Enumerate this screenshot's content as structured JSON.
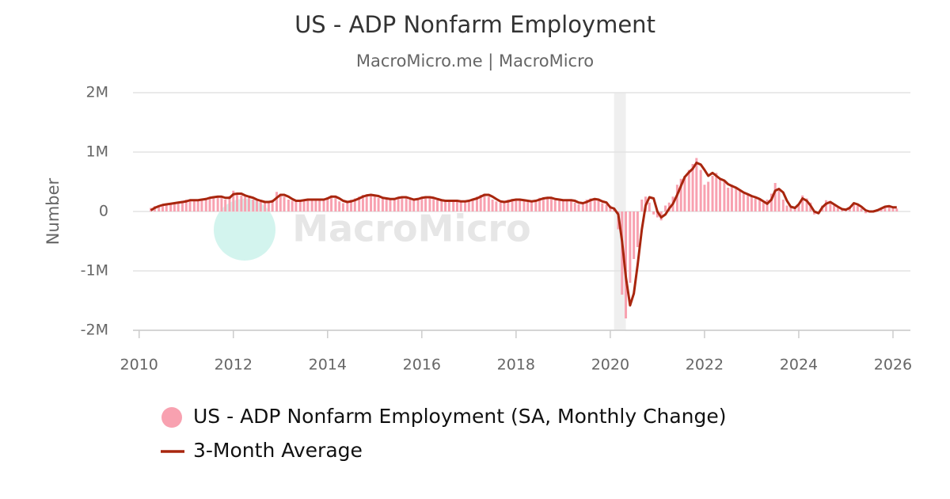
{
  "chart_data": {
    "type": "bar_line",
    "title": "US - ADP Nonfarm Employment",
    "subtitle": "MacroMicro.me | MacroMicro",
    "watermark": "MacroMicro",
    "y_label": "Number",
    "xlim": [
      2009.87,
      2026.37
    ],
    "xticks": [
      2010,
      2012,
      2014,
      2016,
      2018,
      2020,
      2022,
      2024,
      2026
    ],
    "ylim": [
      -2000000,
      2000000
    ],
    "yticks": [
      {
        "value": -2000000,
        "label": "-2M"
      },
      {
        "value": -1000000,
        "label": "-1M"
      },
      0,
      {
        "value": 1000000,
        "label": "1M"
      },
      {
        "value": 2000000,
        "label": "2M"
      }
    ],
    "grid": true,
    "shaded_regions": [
      [
        2020.08,
        2020.33
      ]
    ],
    "shade_color": "#efefef",
    "x": [
      2010.25,
      2010.33,
      2010.42,
      2010.5,
      2010.58,
      2010.67,
      2010.75,
      2010.83,
      2010.92,
      2011.0,
      2011.08,
      2011.17,
      2011.25,
      2011.33,
      2011.42,
      2011.5,
      2011.58,
      2011.67,
      2011.75,
      2011.83,
      2011.92,
      2012.0,
      2012.08,
      2012.17,
      2012.25,
      2012.33,
      2012.42,
      2012.5,
      2012.58,
      2012.67,
      2012.75,
      2012.83,
      2012.92,
      2013.0,
      2013.08,
      2013.17,
      2013.25,
      2013.33,
      2013.42,
      2013.5,
      2013.58,
      2013.67,
      2013.75,
      2013.83,
      2013.92,
      2014.0,
      2014.08,
      2014.17,
      2014.25,
      2014.33,
      2014.42,
      2014.5,
      2014.58,
      2014.67,
      2014.75,
      2014.83,
      2014.92,
      2015.0,
      2015.08,
      2015.17,
      2015.25,
      2015.33,
      2015.42,
      2015.5,
      2015.58,
      2015.67,
      2015.75,
      2015.83,
      2015.92,
      2016.0,
      2016.08,
      2016.17,
      2016.25,
      2016.33,
      2016.42,
      2016.5,
      2016.58,
      2016.67,
      2016.75,
      2016.83,
      2016.92,
      2017.0,
      2017.08,
      2017.17,
      2017.25,
      2017.33,
      2017.42,
      2017.5,
      2017.58,
      2017.67,
      2017.75,
      2017.83,
      2017.92,
      2018.0,
      2018.08,
      2018.17,
      2018.25,
      2018.33,
      2018.42,
      2018.5,
      2018.58,
      2018.67,
      2018.75,
      2018.83,
      2018.92,
      2019.0,
      2019.08,
      2019.17,
      2019.25,
      2019.33,
      2019.42,
      2019.5,
      2019.58,
      2019.67,
      2019.75,
      2019.83,
      2019.92,
      2020.0,
      2020.08,
      2020.17,
      2020.25,
      2020.33,
      2020.42,
      2020.5,
      2020.58,
      2020.67,
      2020.75,
      2020.83,
      2020.92,
      2021.0,
      2021.08,
      2021.17,
      2021.25,
      2021.33,
      2021.42,
      2021.5,
      2021.58,
      2021.67,
      2021.75,
      2021.83,
      2021.92,
      2022.0,
      2022.08,
      2022.17,
      2022.25,
      2022.33,
      2022.42,
      2022.5,
      2022.58,
      2022.67,
      2022.75,
      2022.83,
      2022.92,
      2023.0,
      2023.08,
      2023.17,
      2023.25,
      2023.33,
      2023.42,
      2023.5,
      2023.58,
      2023.67,
      2023.75,
      2023.83,
      2023.92,
      2024.0,
      2024.08,
      2024.17,
      2024.25,
      2024.33,
      2024.42,
      2024.5,
      2024.58,
      2024.67,
      2024.75,
      2024.83,
      2024.92,
      2025.0,
      2025.08,
      2025.17,
      2025.25,
      2025.33,
      2025.42,
      2025.5,
      2025.58,
      2025.67,
      2025.75,
      2025.83,
      2025.92,
      2026.0,
      2026.08
    ],
    "series": [
      {
        "name": "US - ADP Nonfarm Employment (SA, Monthly Change)",
        "kind": "bar",
        "color": "#f8a1b0",
        "values": [
          60000,
          90000,
          100000,
          120000,
          130000,
          140000,
          150000,
          160000,
          180000,
          200000,
          190000,
          180000,
          200000,
          210000,
          230000,
          240000,
          260000,
          250000,
          230000,
          200000,
          260000,
          350000,
          300000,
          270000,
          250000,
          230000,
          200000,
          180000,
          160000,
          150000,
          170000,
          200000,
          330000,
          300000,
          250000,
          200000,
          180000,
          170000,
          190000,
          200000,
          210000,
          200000,
          190000,
          200000,
          220000,
          240000,
          270000,
          230000,
          170000,
          140000,
          160000,
          200000,
          220000,
          250000,
          280000,
          290000,
          260000,
          250000,
          230000,
          220000,
          200000,
          210000,
          230000,
          240000,
          250000,
          220000,
          200000,
          190000,
          230000,
          250000,
          240000,
          230000,
          210000,
          190000,
          180000,
          170000,
          180000,
          190000,
          170000,
          160000,
          180000,
          200000,
          220000,
          250000,
          280000,
          300000,
          250000,
          200000,
          170000,
          150000,
          170000,
          200000,
          210000,
          200000,
          190000,
          180000,
          160000,
          170000,
          200000,
          230000,
          240000,
          230000,
          220000,
          190000,
          180000,
          190000,
          200000,
          180000,
          150000,
          120000,
          150000,
          200000,
          220000,
          200000,
          180000,
          140000,
          120000,
          100000,
          50000,
          -300000,
          -1400000,
          -1800000,
          -1200000,
          -800000,
          -600000,
          200000,
          250000,
          150000,
          -50000,
          -100000,
          -150000,
          100000,
          150000,
          250000,
          450000,
          550000,
          600000,
          700000,
          800000,
          900000,
          700000,
          450000,
          500000,
          600000,
          650000,
          550000,
          500000,
          400000,
          450000,
          400000,
          350000,
          300000,
          300000,
          250000,
          220000,
          200000,
          150000,
          200000,
          300000,
          480000,
          350000,
          200000,
          100000,
          80000,
          60000,
          100000,
          270000,
          220000,
          150000,
          -50000,
          -20000,
          100000,
          190000,
          150000,
          100000,
          60000,
          50000,
          40000,
          80000,
          150000,
          100000,
          50000,
          -30000,
          0,
          20000,
          40000,
          60000,
          80000,
          100000,
          60000,
          50000
        ]
      },
      {
        "name": "3-Month Average",
        "kind": "line",
        "color": "#a8260e",
        "values": [
          20000,
          60000,
          90000,
          110000,
          120000,
          130000,
          140000,
          150000,
          160000,
          170000,
          190000,
          190000,
          190000,
          200000,
          210000,
          230000,
          240000,
          250000,
          250000,
          230000,
          230000,
          290000,
          300000,
          300000,
          270000,
          250000,
          230000,
          200000,
          180000,
          160000,
          160000,
          170000,
          230000,
          280000,
          280000,
          250000,
          210000,
          180000,
          180000,
          190000,
          200000,
          200000,
          200000,
          200000,
          200000,
          220000,
          250000,
          250000,
          220000,
          180000,
          160000,
          170000,
          190000,
          220000,
          250000,
          270000,
          280000,
          270000,
          260000,
          230000,
          220000,
          210000,
          210000,
          230000,
          240000,
          240000,
          220000,
          200000,
          210000,
          230000,
          240000,
          240000,
          230000,
          210000,
          190000,
          180000,
          180000,
          180000,
          180000,
          170000,
          170000,
          180000,
          200000,
          220000,
          250000,
          280000,
          280000,
          250000,
          210000,
          170000,
          160000,
          170000,
          190000,
          200000,
          200000,
          190000,
          180000,
          170000,
          180000,
          200000,
          220000,
          230000,
          230000,
          210000,
          200000,
          190000,
          190000,
          190000,
          180000,
          150000,
          140000,
          160000,
          190000,
          210000,
          200000,
          170000,
          150000,
          70000,
          50000,
          -50000,
          -500000,
          -1100000,
          -1580000,
          -1380000,
          -900000,
          -300000,
          100000,
          240000,
          220000,
          0,
          -100000,
          -50000,
          50000,
          130000,
          280000,
          430000,
          580000,
          660000,
          720000,
          820000,
          790000,
          700000,
          600000,
          650000,
          600000,
          550000,
          520000,
          460000,
          430000,
          400000,
          360000,
          320000,
          290000,
          260000,
          240000,
          210000,
          170000,
          130000,
          200000,
          350000,
          380000,
          320000,
          180000,
          80000,
          60000,
          120000,
          220000,
          180000,
          100000,
          0,
          -30000,
          70000,
          130000,
          160000,
          120000,
          80000,
          40000,
          30000,
          60000,
          140000,
          120000,
          80000,
          20000,
          0,
          0,
          20000,
          50000,
          80000,
          90000,
          70000,
          70000
        ]
      }
    ]
  }
}
